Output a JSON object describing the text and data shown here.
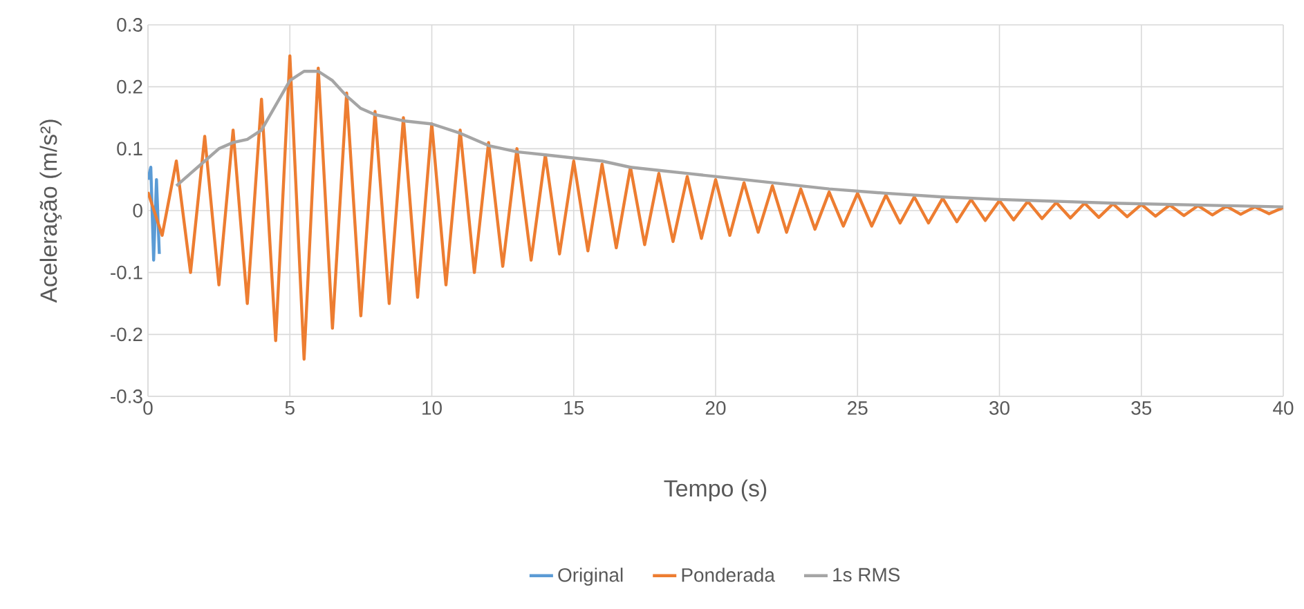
{
  "chart_data": {
    "type": "line",
    "xlabel": "Tempo (s)",
    "ylabel": "Aceleração (m/s²)",
    "xlim": [
      0,
      40
    ],
    "ylim": [
      -0.3,
      0.3
    ],
    "xticks": [
      0,
      5,
      10,
      15,
      20,
      25,
      30,
      35,
      40
    ],
    "yticks": [
      -0.3,
      -0.2,
      -0.1,
      0,
      0.1,
      0.2,
      0.3
    ],
    "grid": true,
    "legend": "bottom",
    "series": [
      {
        "name": "Original",
        "color": "#5b9bd5",
        "x": [
          0,
          0.1,
          0.2,
          0.3,
          0.4
        ],
        "values": [
          0.05,
          0.07,
          -0.08,
          0.05,
          -0.07
        ]
      },
      {
        "name": "Ponderada",
        "color": "#ed7d31",
        "x": [
          0,
          0.5,
          1,
          1.5,
          2,
          2.5,
          3,
          3.5,
          4,
          4.5,
          5,
          5.5,
          6,
          6.5,
          7,
          7.5,
          8,
          8.5,
          9,
          9.5,
          10,
          10.5,
          11,
          11.5,
          12,
          12.5,
          13,
          13.5,
          14,
          14.5,
          15,
          15.5,
          16,
          16.5,
          17,
          17.5,
          18,
          18.5,
          19,
          19.5,
          20,
          20.5,
          21,
          21.5,
          22,
          22.5,
          23,
          23.5,
          24,
          24.5,
          25,
          25.5,
          26,
          26.5,
          27,
          27.5,
          28,
          28.5,
          29,
          29.5,
          30,
          30.5,
          31,
          31.5,
          32,
          32.5,
          33,
          33.5,
          34,
          34.5,
          35,
          35.5,
          36,
          36.5,
          37,
          37.5,
          38,
          38.5,
          39,
          39.5,
          40
        ],
        "values": [
          0.03,
          -0.04,
          0.08,
          -0.1,
          0.12,
          -0.12,
          0.13,
          -0.15,
          0.18,
          -0.21,
          0.25,
          -0.24,
          0.23,
          -0.19,
          0.19,
          -0.17,
          0.16,
          -0.15,
          0.15,
          -0.14,
          0.14,
          -0.12,
          0.13,
          -0.1,
          0.11,
          -0.09,
          0.1,
          -0.08,
          0.09,
          -0.07,
          0.08,
          -0.065,
          0.075,
          -0.06,
          0.07,
          -0.055,
          0.06,
          -0.05,
          0.055,
          -0.045,
          0.05,
          -0.04,
          0.045,
          -0.035,
          0.04,
          -0.035,
          0.035,
          -0.03,
          0.03,
          -0.025,
          0.028,
          -0.025,
          0.025,
          -0.02,
          0.022,
          -0.02,
          0.02,
          -0.018,
          0.018,
          -0.016,
          0.016,
          -0.015,
          0.015,
          -0.013,
          0.013,
          -0.012,
          0.012,
          -0.011,
          0.011,
          -0.01,
          0.01,
          -0.009,
          0.009,
          -0.008,
          0.008,
          -0.007,
          0.007,
          -0.006,
          0.006,
          -0.005,
          0.005
        ]
      },
      {
        "name": "1s RMS",
        "color": "#a5a5a5",
        "x": [
          1,
          1.5,
          2,
          2.5,
          3,
          3.5,
          4,
          4.5,
          5,
          5.5,
          6,
          6.5,
          7,
          7.5,
          8,
          9,
          10,
          11,
          12,
          13,
          14,
          15,
          16,
          17,
          18,
          19,
          20,
          22,
          24,
          26,
          28,
          30,
          32,
          34,
          36,
          38,
          40
        ],
        "values": [
          0.04,
          0.06,
          0.08,
          0.1,
          0.11,
          0.115,
          0.13,
          0.17,
          0.21,
          0.225,
          0.225,
          0.21,
          0.185,
          0.165,
          0.155,
          0.145,
          0.14,
          0.125,
          0.105,
          0.095,
          0.09,
          0.085,
          0.08,
          0.07,
          0.065,
          0.06,
          0.055,
          0.045,
          0.035,
          0.028,
          0.022,
          0.018,
          0.015,
          0.012,
          0.01,
          0.008,
          0.006
        ]
      }
    ]
  }
}
